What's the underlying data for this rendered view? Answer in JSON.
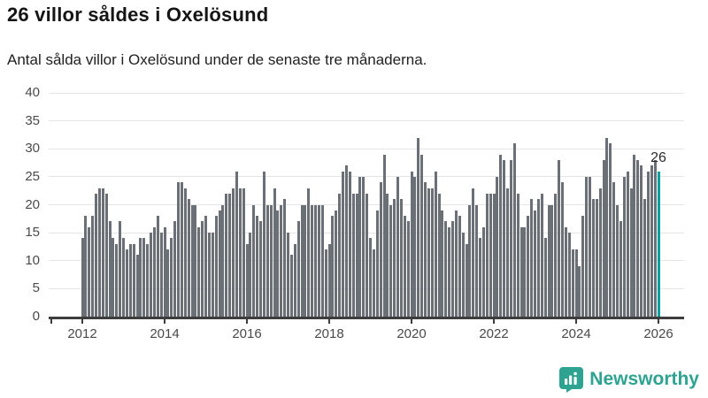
{
  "header": {
    "title": "26 villor såldes i Oxelösund",
    "subtitle": "Antal sålda villor i Oxelösund under de senaste tre månaderna."
  },
  "chart_data": {
    "type": "bar",
    "title": "26 villor såldes i Oxelösund",
    "subtitle": "Antal sålda villor i Oxelösund under de senaste tre månaderna.",
    "xlabel": "",
    "ylabel": "",
    "ylim": [
      0,
      40
    ],
    "y_ticks": [
      0,
      5,
      10,
      15,
      20,
      25,
      30,
      35,
      40
    ],
    "x_tick_labels": [
      "2012",
      "2014",
      "2016",
      "2018",
      "2020",
      "2022",
      "2024",
      "2026"
    ],
    "x_start": "2012-01",
    "x_end": "2026-01",
    "grid": true,
    "legend_position": "none",
    "values": [
      14,
      18,
      16,
      18,
      22,
      23,
      23,
      22,
      17,
      14,
      13,
      17,
      14,
      12,
      13,
      13,
      11,
      14,
      14,
      13,
      15,
      16,
      18,
      15,
      16,
      12,
      14,
      17,
      24,
      24,
      23,
      21,
      20,
      20,
      16,
      17,
      18,
      15,
      15,
      18,
      19,
      20,
      22,
      22,
      23,
      26,
      23,
      23,
      13,
      15,
      20,
      18,
      17,
      26,
      20,
      20,
      23,
      19,
      20,
      21,
      15,
      11,
      13,
      17,
      20,
      20,
      23,
      20,
      20,
      20,
      20,
      12,
      13,
      18,
      19,
      22,
      26,
      27,
      26,
      22,
      22,
      25,
      25,
      22,
      14,
      12,
      19,
      24,
      29,
      22,
      20,
      21,
      25,
      21,
      18,
      17,
      26,
      25,
      32,
      29,
      24,
      23,
      23,
      26,
      22,
      19,
      17,
      16,
      17,
      19,
      18,
      15,
      13,
      20,
      23,
      20,
      14,
      16,
      22,
      22,
      22,
      25,
      29,
      28,
      23,
      28,
      31,
      22,
      16,
      16,
      18,
      21,
      19,
      21,
      22,
      14,
      20,
      20,
      22,
      28,
      24,
      16,
      15,
      12,
      12,
      9,
      18,
      25,
      25,
      21,
      21,
      23,
      28,
      32,
      31,
      24,
      20,
      17,
      25,
      26,
      23,
      29,
      28,
      27,
      21,
      26,
      27,
      28,
      26
    ],
    "highlight_index": 168,
    "highlight_value_label": "26",
    "colors": {
      "bar": "#6b6f76",
      "highlight": "#00a0a0",
      "gridline": "#e5e5e5",
      "axis": "#3d3d3d",
      "tick_text": "#4a4a4a",
      "value_label_text": "#2b2b2b"
    }
  },
  "footer": {
    "brand": "Newsworthy",
    "brand_color": "#2fa391",
    "logo_icon": "bar-chart-speech-bubble-icon"
  }
}
